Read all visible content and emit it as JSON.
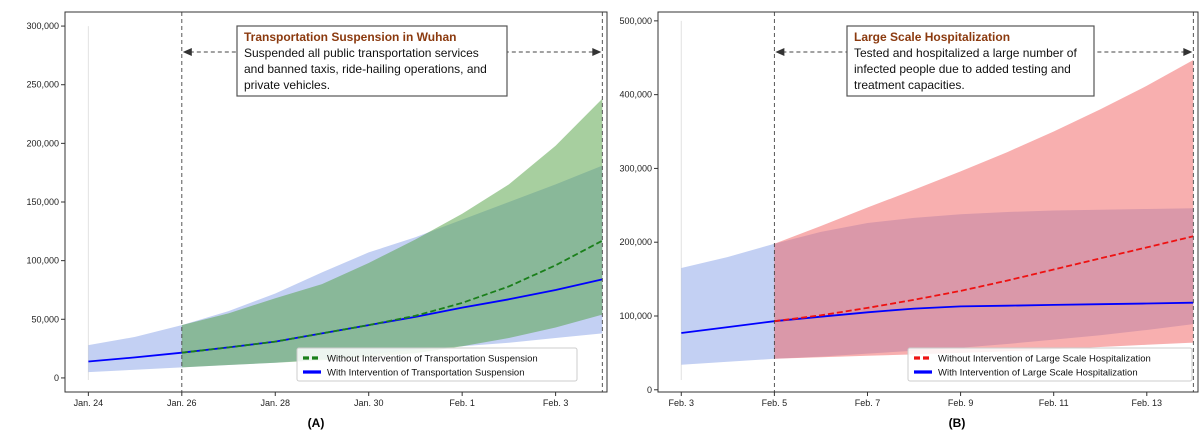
{
  "chart_data": [
    {
      "type": "line",
      "panel_label": "(A)",
      "x_ticks": [
        "Jan. 24",
        "Jan. 26",
        "Jan. 28",
        "Jan. 30",
        "Feb. 1",
        "Feb. 3"
      ],
      "x_range": [
        -0.5,
        11.1
      ],
      "ylim": [
        -12000,
        312000
      ],
      "y_ticks": [
        0,
        50000,
        100000,
        150000,
        200000,
        250000,
        300000
      ],
      "y_tick_labels": [
        "0",
        "50,000",
        "100,000",
        "150,000",
        "200,000",
        "250,000",
        "300,000"
      ],
      "intervention_start_day": 2,
      "intervention_end_day": 11,
      "annotation": {
        "title": "Transportation Suspension in Wuhan",
        "lines": [
          "Suspended all public transportation services",
          "and banned taxis, ride-hailing operations, and",
          "private vehicles."
        ]
      },
      "legend": {
        "placement": "bottom-right",
        "entries": [
          "Without Intervention of Transportation Suspension",
          "With Intervention of Transportation Suspension"
        ]
      },
      "series": [
        {
          "name": "With Intervention of Transportation Suspension",
          "color": "#0000ff",
          "style": "solid",
          "x": [
            0,
            1,
            2,
            3,
            4,
            5,
            6,
            7,
            8,
            9,
            10,
            11
          ],
          "values": [
            14000,
            17500,
            21500,
            26000,
            31000,
            38000,
            45000,
            52000,
            60000,
            67000,
            75000,
            84000
          ],
          "band_upper": [
            28000,
            35000,
            45000,
            57000,
            72000,
            90000,
            107000,
            120000,
            135000,
            150000,
            165000,
            181000
          ],
          "band_lower": [
            5000,
            7000,
            9000,
            11000,
            13000,
            16000,
            20000,
            24000,
            27000,
            30000,
            34000,
            38000
          ],
          "band_color": "#6f8fe3"
        },
        {
          "name": "Without Intervention of Transportation Suspension",
          "color": "#1a7f1a",
          "style": "dashed",
          "x": [
            2,
            3,
            4,
            5,
            6,
            7,
            8,
            9,
            10,
            11
          ],
          "values": [
            21500,
            26000,
            31000,
            38000,
            45000,
            53000,
            64000,
            78000,
            96000,
            117000
          ],
          "band_upper": [
            45000,
            55000,
            68000,
            80000,
            98000,
            118000,
            140000,
            165000,
            198000,
            238000
          ],
          "band_lower": [
            9000,
            11000,
            13000,
            15000,
            18000,
            21000,
            27000,
            34000,
            43000,
            54000
          ],
          "band_color": "#4f9f3f"
        }
      ]
    },
    {
      "type": "line",
      "panel_label": "(B)",
      "x_ticks": [
        "Feb. 3",
        "Feb. 5",
        "Feb. 7",
        "Feb. 9",
        "Feb. 11",
        "Feb. 13"
      ],
      "x_range": [
        -0.5,
        11.1
      ],
      "ylim": [
        -3000,
        512000
      ],
      "y_ticks": [
        0,
        100000,
        200000,
        300000,
        400000,
        500000
      ],
      "y_tick_labels": [
        "0",
        "100,000",
        "200,000",
        "300,000",
        "400,000",
        "500,000"
      ],
      "intervention_start_day": 2,
      "intervention_end_day": 11,
      "annotation": {
        "title": "Large Scale Hospitalization",
        "lines": [
          "Tested and hospitalized a large number of",
          "infected people due to added testing and",
          "treatment capacities."
        ]
      },
      "legend": {
        "placement": "bottom-right",
        "entries": [
          "Without Intervention of Large Scale Hospitalization",
          "With Intervention of Large Scale Hospitalization"
        ]
      },
      "series": [
        {
          "name": "With Intervention of Large Scale Hospitalization",
          "color": "#0000ff",
          "style": "solid",
          "x": [
            0,
            1,
            2,
            3,
            4,
            5,
            6,
            7,
            8,
            9,
            10,
            11
          ],
          "values": [
            77000,
            85000,
            93000,
            99000,
            105000,
            110000,
            113000,
            114000,
            115000,
            116000,
            117000,
            118000
          ],
          "band_upper": [
            165000,
            180000,
            198000,
            214000,
            226000,
            233000,
            238000,
            241000,
            243000,
            244000,
            245000,
            246000
          ],
          "band_lower": [
            34000,
            38000,
            42000,
            45000,
            49000,
            53000,
            57000,
            62000,
            68000,
            74000,
            81000,
            89000
          ],
          "band_color": "#6f8fe3"
        },
        {
          "name": "Without Intervention of Large Scale Hospitalization",
          "color": "#ee1111",
          "style": "dashed",
          "x": [
            2,
            3,
            4,
            5,
            6,
            7,
            8,
            9,
            10,
            11
          ],
          "values": [
            93000,
            101000,
            111000,
            122000,
            134000,
            148000,
            163000,
            178000,
            193000,
            208000
          ],
          "band_upper": [
            198000,
            222000,
            247000,
            271000,
            296000,
            322000,
            350000,
            380000,
            412000,
            447000
          ],
          "band_lower": [
            42000,
            44000,
            46000,
            48000,
            50000,
            52000,
            55000,
            58000,
            61000,
            64000
          ],
          "band_color": "#f26060"
        }
      ]
    }
  ]
}
